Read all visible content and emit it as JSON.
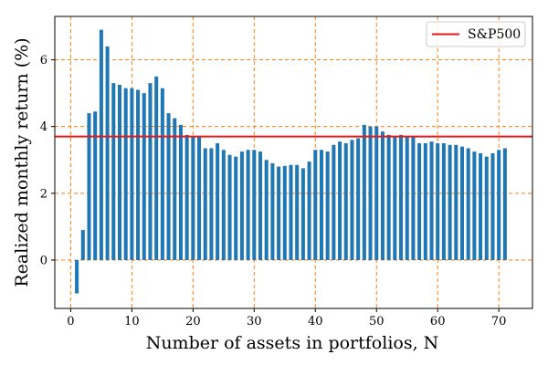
{
  "chart_data": {
    "type": "bar",
    "xlabel": "Number of assets in portfolios, N",
    "ylabel": "Realized monthly return (%)",
    "xlim": [
      -2.6,
      75.5
    ],
    "ylim": [
      -1.45,
      7.3
    ],
    "xticks": [
      0,
      10,
      20,
      30,
      40,
      50,
      60,
      70
    ],
    "yticks": [
      0,
      2,
      4,
      6
    ],
    "grid": true,
    "legend_position": "top-right",
    "bar_color": "#1f77b4",
    "grid_color": "#ff7f0e",
    "x": [
      1,
      2,
      3,
      4,
      5,
      6,
      7,
      8,
      9,
      10,
      11,
      12,
      13,
      14,
      15,
      16,
      17,
      18,
      19,
      20,
      21,
      22,
      23,
      24,
      25,
      26,
      27,
      28,
      29,
      30,
      31,
      32,
      33,
      34,
      35,
      36,
      37,
      38,
      39,
      40,
      41,
      42,
      43,
      44,
      45,
      46,
      47,
      48,
      49,
      50,
      51,
      52,
      53,
      54,
      55,
      56,
      57,
      58,
      59,
      60,
      61,
      62,
      63,
      64,
      65,
      66,
      67,
      68,
      69,
      70,
      71
    ],
    "values": [
      -1.0,
      0.9,
      4.4,
      4.45,
      6.9,
      6.4,
      5.3,
      5.25,
      5.15,
      5.15,
      5.1,
      5.0,
      5.3,
      5.5,
      5.15,
      4.4,
      4.25,
      4.05,
      3.75,
      3.7,
      3.7,
      3.35,
      3.35,
      3.5,
      3.3,
      3.15,
      3.1,
      3.25,
      3.3,
      3.3,
      3.25,
      3.0,
      2.9,
      2.8,
      2.82,
      2.85,
      2.85,
      2.75,
      2.95,
      3.3,
      3.3,
      3.25,
      3.45,
      3.55,
      3.5,
      3.6,
      3.65,
      4.05,
      4.0,
      4.0,
      3.85,
      3.75,
      3.7,
      3.75,
      3.7,
      3.7,
      3.5,
      3.5,
      3.55,
      3.5,
      3.5,
      3.45,
      3.45,
      3.4,
      3.35,
      3.25,
      3.2,
      3.1,
      3.2,
      3.3,
      3.35
    ],
    "reference_line": {
      "name": "S&P500",
      "value": 3.7,
      "color": "#e31a1c"
    }
  }
}
